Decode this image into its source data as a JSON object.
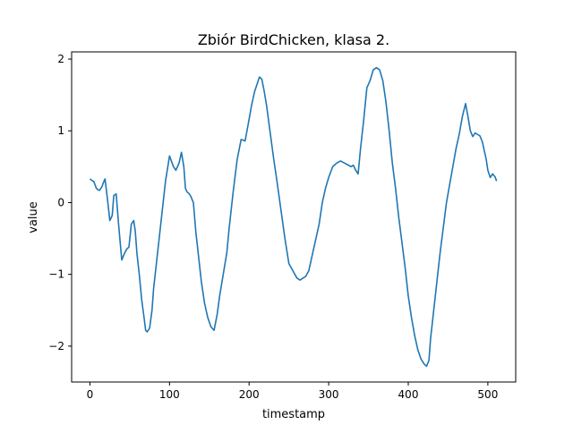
{
  "chart_data": {
    "type": "line",
    "title": "Zbiór BirdChicken, klasa 2.",
    "xlabel": "timestamp",
    "ylabel": "value",
    "xlim": [
      -23,
      535
    ],
    "ylim": [
      -2.5,
      2.1
    ],
    "xticks": [
      0,
      100,
      200,
      300,
      400,
      500
    ],
    "yticks": [
      -2,
      -1,
      0,
      1,
      2
    ],
    "xtick_labels": [
      "0",
      "100",
      "200",
      "300",
      "400",
      "500"
    ],
    "ytick_labels": [
      "−2",
      "−1",
      "0",
      "1",
      "2"
    ],
    "grid": false,
    "legend": "none",
    "colors": {
      "line": "#1f77b4",
      "axes": "#000000",
      "background": "#ffffff"
    },
    "series": [
      {
        "x": [
          0,
          5,
          8,
          10,
          12,
          15,
          17,
          19,
          22,
          25,
          28,
          30,
          33,
          36,
          38,
          40,
          43,
          46,
          49,
          52,
          55,
          57,
          59,
          62,
          65,
          68,
          70,
          72,
          75,
          78,
          80,
          83,
          86,
          90,
          95,
          100,
          105,
          108,
          110,
          112,
          115,
          118,
          120,
          122,
          125,
          127,
          130,
          133,
          136,
          140,
          144,
          148,
          152,
          156,
          160,
          163,
          166,
          169,
          172,
          175,
          180,
          185,
          190,
          195,
          199,
          203,
          207,
          210,
          213,
          216,
          219,
          222,
          225,
          228,
          231,
          235,
          240,
          245,
          250,
          255,
          260,
          264,
          268,
          271,
          275,
          280,
          284,
          288,
          292,
          296,
          300,
          305,
          310,
          315,
          320,
          325,
          328,
          331,
          334,
          337,
          340,
          344,
          348,
          352,
          356,
          360,
          364,
          368,
          372,
          376,
          380,
          384,
          388,
          392,
          396,
          400,
          404,
          408,
          412,
          416,
          420,
          423,
          426,
          428,
          432,
          436,
          440,
          444,
          448,
          452,
          456,
          460,
          464,
          468,
          472,
          475,
          478,
          481,
          484,
          487,
          490,
          493,
          495,
          498,
          500,
          503,
          506,
          509,
          511
        ],
        "values": [
          0.33,
          0.29,
          0.2,
          0.18,
          0.17,
          0.22,
          0.28,
          0.33,
          0.05,
          -0.25,
          -0.18,
          0.1,
          0.12,
          -0.3,
          -0.55,
          -0.8,
          -0.72,
          -0.65,
          -0.62,
          -0.3,
          -0.25,
          -0.4,
          -0.7,
          -1.0,
          -1.35,
          -1.6,
          -1.78,
          -1.8,
          -1.75,
          -1.5,
          -1.2,
          -0.9,
          -0.6,
          -0.2,
          0.3,
          0.65,
          0.5,
          0.45,
          0.5,
          0.55,
          0.7,
          0.5,
          0.2,
          0.15,
          0.12,
          0.08,
          0.0,
          -0.4,
          -0.7,
          -1.1,
          -1.4,
          -1.6,
          -1.73,
          -1.78,
          -1.55,
          -1.3,
          -1.1,
          -0.9,
          -0.7,
          -0.35,
          0.15,
          0.6,
          0.88,
          0.86,
          1.1,
          1.35,
          1.55,
          1.65,
          1.75,
          1.72,
          1.55,
          1.35,
          1.1,
          0.85,
          0.6,
          0.3,
          -0.1,
          -0.5,
          -0.85,
          -0.95,
          -1.05,
          -1.08,
          -1.05,
          -1.03,
          -0.95,
          -0.7,
          -0.5,
          -0.3,
          0.0,
          0.2,
          0.35,
          0.5,
          0.55,
          0.58,
          0.55,
          0.52,
          0.5,
          0.52,
          0.45,
          0.4,
          0.75,
          1.15,
          1.6,
          1.7,
          1.85,
          1.88,
          1.85,
          1.7,
          1.4,
          1.0,
          0.55,
          0.2,
          -0.2,
          -0.55,
          -0.9,
          -1.3,
          -1.6,
          -1.85,
          -2.05,
          -2.18,
          -2.25,
          -2.28,
          -2.2,
          -1.9,
          -1.5,
          -1.1,
          -0.7,
          -0.35,
          0.0,
          0.25,
          0.5,
          0.75,
          0.95,
          1.2,
          1.38,
          1.2,
          1.0,
          0.92,
          0.97,
          0.95,
          0.93,
          0.85,
          0.75,
          0.6,
          0.45,
          0.35,
          0.4,
          0.36,
          0.3
        ]
      }
    ]
  }
}
